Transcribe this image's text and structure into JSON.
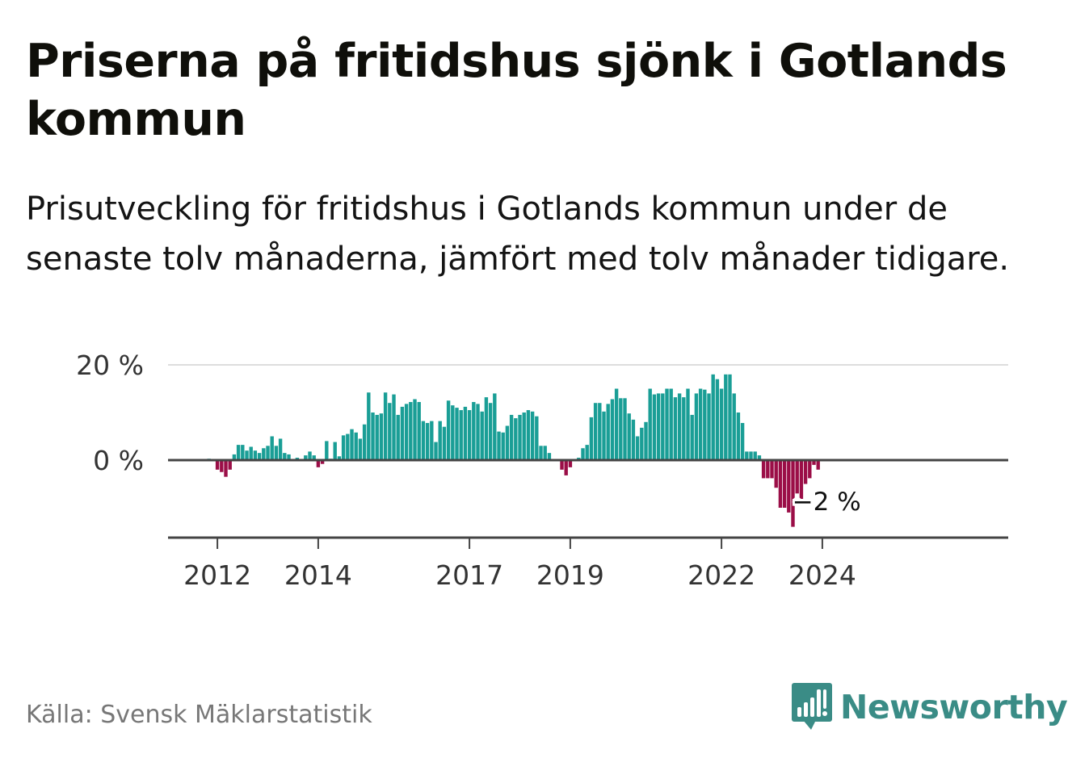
{
  "title": "Priserna på fritidshus sjönk i Gotlands kommun",
  "subtitle": "Prisutveckling för fritidshus i Gotlands kommun under de senaste tolv månaderna, jämfört med tolv månader tidigare.",
  "source": "Källa: Svensk Mäklarstatistik",
  "brand": "Newsworthy",
  "colors": {
    "positive": "#1a9e96",
    "negative": "#9b0e47",
    "brand": "#3a8c86"
  },
  "chart_data": {
    "type": "bar",
    "x_start": "2011-11",
    "frequency": "monthly",
    "values": [
      0.3,
      -0.2,
      -2,
      -2.5,
      -3.5,
      -2,
      1.2,
      3.2,
      3.2,
      2,
      2.8,
      2,
      1.5,
      2.5,
      3,
      5,
      3,
      4.5,
      1.5,
      1.2,
      0,
      0.5,
      0,
      1,
      1.8,
      1,
      -1.5,
      -0.8,
      4,
      0.3,
      3.8,
      0.8,
      5.2,
      5.5,
      6.5,
      5.8,
      4.5,
      7.5,
      14.2,
      10,
      9.5,
      9.8,
      14.2,
      12,
      13.8,
      9.5,
      11.2,
      11.8,
      12.2,
      12.8,
      12.2,
      8.2,
      7.8,
      8.2,
      3.8,
      8.2,
      7,
      12.5,
      11.5,
      11,
      10.5,
      11.2,
      10.5,
      12.2,
      11.8,
      10.2,
      13.2,
      12,
      14,
      6,
      5.8,
      7.2,
      9.5,
      8.8,
      9.5,
      10,
      10.5,
      10.2,
      9.2,
      3,
      3,
      1.5,
      0,
      0,
      -2,
      -3.2,
      -1.5,
      0,
      0.5,
      2.5,
      3.2,
      9,
      12,
      12,
      10.2,
      11.8,
      12.8,
      15,
      13,
      13,
      9.8,
      8.5,
      5,
      6.8,
      8,
      15,
      13.8,
      14,
      14,
      15,
      15,
      13.2,
      14,
      13.2,
      15,
      9.5,
      14,
      15,
      14.8,
      14,
      18,
      17,
      15,
      18,
      18,
      14,
      10,
      7.8,
      1.8,
      1.8,
      1.8,
      1,
      -3.8,
      -3.8,
      -3.8,
      -5.8,
      -10,
      -10,
      -11,
      -14,
      -7,
      -9.5,
      -5,
      -3.8,
      -1,
      -2
    ],
    "ylim": [
      -16,
      20
    ],
    "y_ticks": [
      {
        "value": 20,
        "label": "20 %"
      },
      {
        "value": 0,
        "label": "0 %"
      }
    ],
    "x_ticks": [
      {
        "date": "2012-01",
        "label": "2012"
      },
      {
        "date": "2014-01",
        "label": "2014"
      },
      {
        "date": "2017-01",
        "label": "2017"
      },
      {
        "date": "2019-01",
        "label": "2019"
      },
      {
        "date": "2022-01",
        "label": "2022"
      },
      {
        "date": "2024-01",
        "label": "2024"
      }
    ],
    "end_label": "−2 %",
    "grid": true,
    "legend": "none"
  }
}
